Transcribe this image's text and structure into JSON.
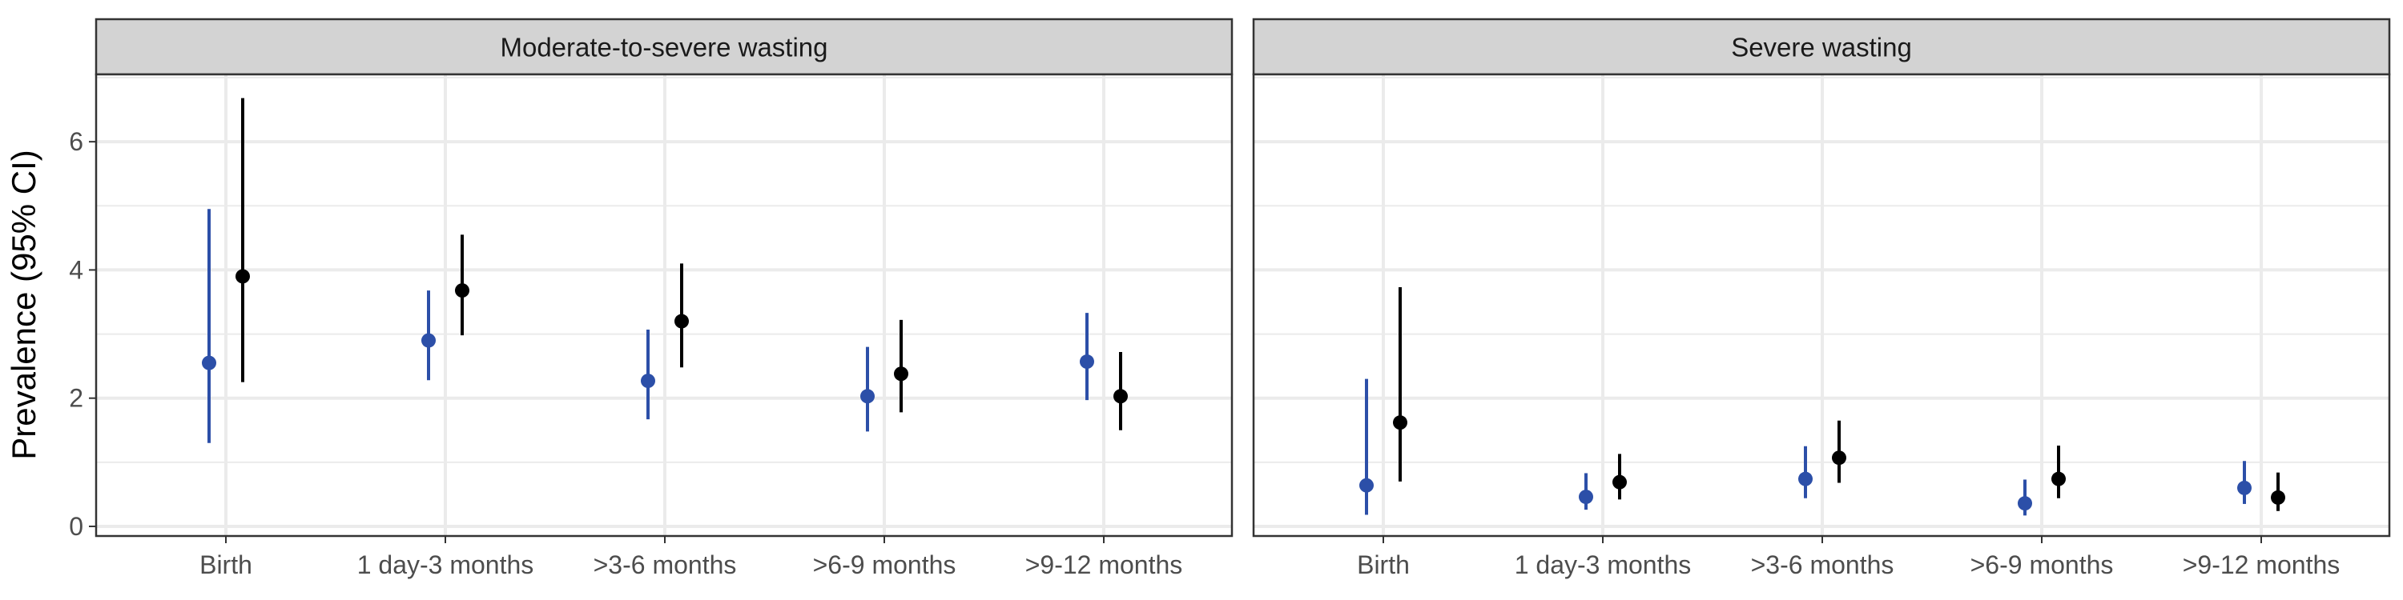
{
  "chart_data": {
    "type": "scatter",
    "ylabel": "Prevalence (95% CI)",
    "ylim": [
      -0.15,
      7.05
    ],
    "y_ticks": [
      0,
      2,
      4,
      6
    ],
    "y_tick_labels": [
      "0",
      "2",
      "4",
      "6"
    ],
    "categories": [
      "Birth",
      "1 day-3 months",
      ">3-6 months",
      ">6-9 months",
      ">9-12 months"
    ],
    "grid": true,
    "legend": "none",
    "colors": {
      "blue": "#2C4FA8",
      "black": "#000000",
      "strip_bg": "#D3D3D3",
      "grid": "#EBEBEB"
    },
    "panels": [
      {
        "strip_label": "Moderate-to-severe wasting",
        "series": [
          {
            "color": "blue",
            "points": [
              {
                "y": 2.55,
                "lo": 1.3,
                "hi": 4.95
              },
              {
                "y": 2.9,
                "lo": 2.28,
                "hi": 3.68
              },
              {
                "y": 2.27,
                "lo": 1.67,
                "hi": 3.07
              },
              {
                "y": 2.03,
                "lo": 1.48,
                "hi": 2.8
              },
              {
                "y": 2.57,
                "lo": 1.97,
                "hi": 3.33
              }
            ]
          },
          {
            "color": "black",
            "points": [
              {
                "y": 3.9,
                "lo": 2.25,
                "hi": 6.68
              },
              {
                "y": 3.68,
                "lo": 2.98,
                "hi": 4.55
              },
              {
                "y": 3.2,
                "lo": 2.48,
                "hi": 4.1
              },
              {
                "y": 2.38,
                "lo": 1.78,
                "hi": 3.22
              },
              {
                "y": 2.03,
                "lo": 1.5,
                "hi": 2.72
              }
            ]
          }
        ]
      },
      {
        "strip_label": "Severe wasting",
        "series": [
          {
            "color": "blue",
            "points": [
              {
                "y": 0.64,
                "lo": 0.18,
                "hi": 2.3
              },
              {
                "y": 0.46,
                "lo": 0.26,
                "hi": 0.83
              },
              {
                "y": 0.74,
                "lo": 0.44,
                "hi": 1.25
              },
              {
                "y": 0.36,
                "lo": 0.17,
                "hi": 0.73
              },
              {
                "y": 0.6,
                "lo": 0.35,
                "hi": 1.02
              }
            ]
          },
          {
            "color": "black",
            "points": [
              {
                "y": 1.62,
                "lo": 0.7,
                "hi": 3.73
              },
              {
                "y": 0.69,
                "lo": 0.42,
                "hi": 1.13
              },
              {
                "y": 1.07,
                "lo": 0.68,
                "hi": 1.65
              },
              {
                "y": 0.74,
                "lo": 0.44,
                "hi": 1.26
              },
              {
                "y": 0.45,
                "lo": 0.24,
                "hi": 0.84
              }
            ]
          }
        ]
      }
    ]
  }
}
